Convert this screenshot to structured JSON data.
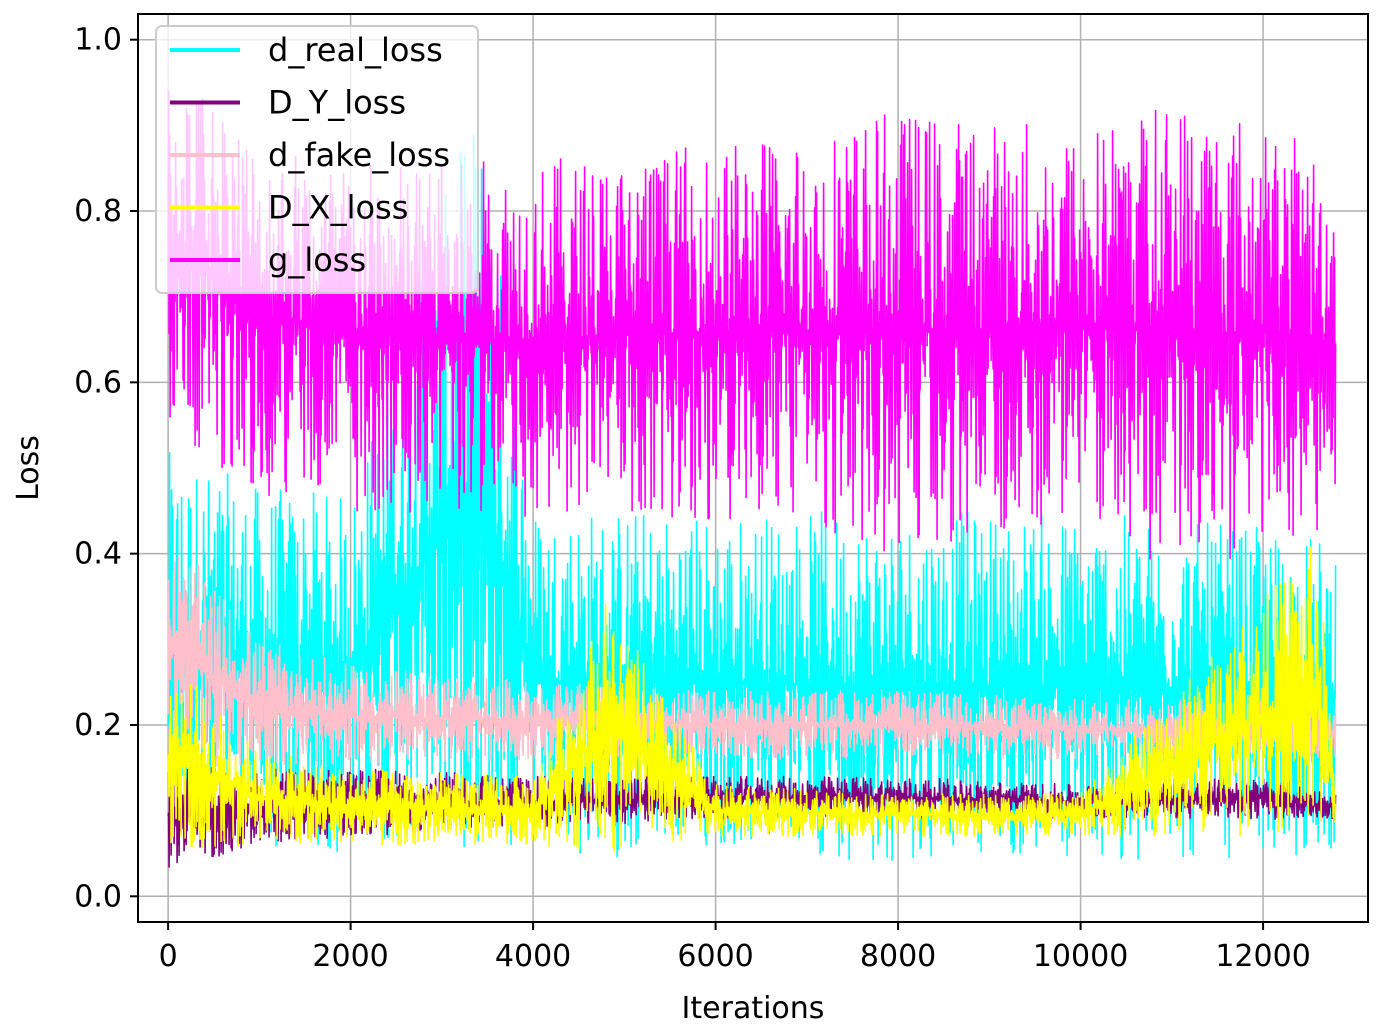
{
  "chart_data": {
    "type": "line",
    "title": "",
    "xlabel": "Iterations",
    "ylabel": "Loss",
    "xlim": [
      -330,
      13150
    ],
    "ylim": [
      -0.03,
      1.03
    ],
    "xticks": [
      0,
      2000,
      4000,
      6000,
      8000,
      10000,
      12000
    ],
    "xtick_labels": [
      "0",
      "2000",
      "4000",
      "6000",
      "8000",
      "10000",
      "12000"
    ],
    "yticks": [
      0.0,
      0.2,
      0.4,
      0.6,
      0.8,
      1.0
    ],
    "ytick_labels": [
      "0.0",
      "0.2",
      "0.4",
      "0.6",
      "0.8",
      "1.0"
    ],
    "grid": true,
    "legend_position": "top-left",
    "x_range": [
      0,
      12800
    ],
    "series": [
      {
        "name": "d_real_loss",
        "color": "#00FFFF",
        "band": [
          {
            "x": 0,
            "low": 0.08,
            "high": 0.52
          },
          {
            "x": 1000,
            "low": 0.05,
            "high": 0.48
          },
          {
            "x": 2000,
            "low": 0.05,
            "high": 0.47
          },
          {
            "x": 3400,
            "low": 0.05,
            "high": 0.94
          },
          {
            "x": 4000,
            "low": 0.04,
            "high": 0.46
          },
          {
            "x": 6000,
            "low": 0.05,
            "high": 0.45
          },
          {
            "x": 8000,
            "low": 0.04,
            "high": 0.45
          },
          {
            "x": 10000,
            "low": 0.04,
            "high": 0.45
          },
          {
            "x": 12000,
            "low": 0.04,
            "high": 0.43
          },
          {
            "x": 12800,
            "low": 0.05,
            "high": 0.42
          }
        ]
      },
      {
        "name": "D_Y_loss",
        "color": "#800080",
        "band": [
          {
            "x": 0,
            "low": 0.03,
            "high": 0.16
          },
          {
            "x": 1000,
            "low": 0.06,
            "high": 0.15
          },
          {
            "x": 2000,
            "low": 0.07,
            "high": 0.15
          },
          {
            "x": 4000,
            "low": 0.08,
            "high": 0.14
          },
          {
            "x": 6000,
            "low": 0.09,
            "high": 0.14
          },
          {
            "x": 8000,
            "low": 0.09,
            "high": 0.14
          },
          {
            "x": 10000,
            "low": 0.09,
            "high": 0.13
          },
          {
            "x": 12000,
            "low": 0.09,
            "high": 0.14
          },
          {
            "x": 12800,
            "low": 0.09,
            "high": 0.12
          }
        ]
      },
      {
        "name": "d_fake_loss",
        "color": "#FFC0CB",
        "band": [
          {
            "x": 0,
            "low": 0.15,
            "high": 0.43
          },
          {
            "x": 1000,
            "low": 0.15,
            "high": 0.3
          },
          {
            "x": 2000,
            "low": 0.15,
            "high": 0.27
          },
          {
            "x": 4000,
            "low": 0.16,
            "high": 0.25
          },
          {
            "x": 6000,
            "low": 0.16,
            "high": 0.24
          },
          {
            "x": 8000,
            "low": 0.16,
            "high": 0.24
          },
          {
            "x": 10000,
            "low": 0.16,
            "high": 0.23
          },
          {
            "x": 12000,
            "low": 0.16,
            "high": 0.23
          },
          {
            "x": 12800,
            "low": 0.16,
            "high": 0.22
          }
        ]
      },
      {
        "name": "D_X_loss",
        "color": "#FFFF00",
        "band": [
          {
            "x": 0,
            "low": 0.05,
            "high": 0.28
          },
          {
            "x": 1000,
            "low": 0.06,
            "high": 0.17
          },
          {
            "x": 2000,
            "low": 0.06,
            "high": 0.15
          },
          {
            "x": 4000,
            "low": 0.06,
            "high": 0.14
          },
          {
            "x": 4800,
            "low": 0.05,
            "high": 0.35
          },
          {
            "x": 6000,
            "low": 0.07,
            "high": 0.13
          },
          {
            "x": 8000,
            "low": 0.07,
            "high": 0.12
          },
          {
            "x": 10000,
            "low": 0.07,
            "high": 0.12
          },
          {
            "x": 12600,
            "low": 0.07,
            "high": 0.42
          },
          {
            "x": 12800,
            "low": 0.08,
            "high": 0.12
          }
        ]
      },
      {
        "name": "g_loss",
        "color": "#FF00FF",
        "band": [
          {
            "x": 0,
            "low": 0.55,
            "high": 0.97
          },
          {
            "x": 500,
            "low": 0.5,
            "high": 0.95
          },
          {
            "x": 1000,
            "low": 0.47,
            "high": 0.89
          },
          {
            "x": 2000,
            "low": 0.45,
            "high": 0.86
          },
          {
            "x": 4000,
            "low": 0.44,
            "high": 0.86
          },
          {
            "x": 6000,
            "low": 0.44,
            "high": 0.88
          },
          {
            "x": 8000,
            "low": 0.4,
            "high": 0.92
          },
          {
            "x": 10000,
            "low": 0.43,
            "high": 0.9
          },
          {
            "x": 11400,
            "low": 0.36,
            "high": 0.95
          },
          {
            "x": 12000,
            "low": 0.42,
            "high": 0.9
          },
          {
            "x": 12800,
            "low": 0.42,
            "high": 0.87
          }
        ]
      }
    ]
  }
}
